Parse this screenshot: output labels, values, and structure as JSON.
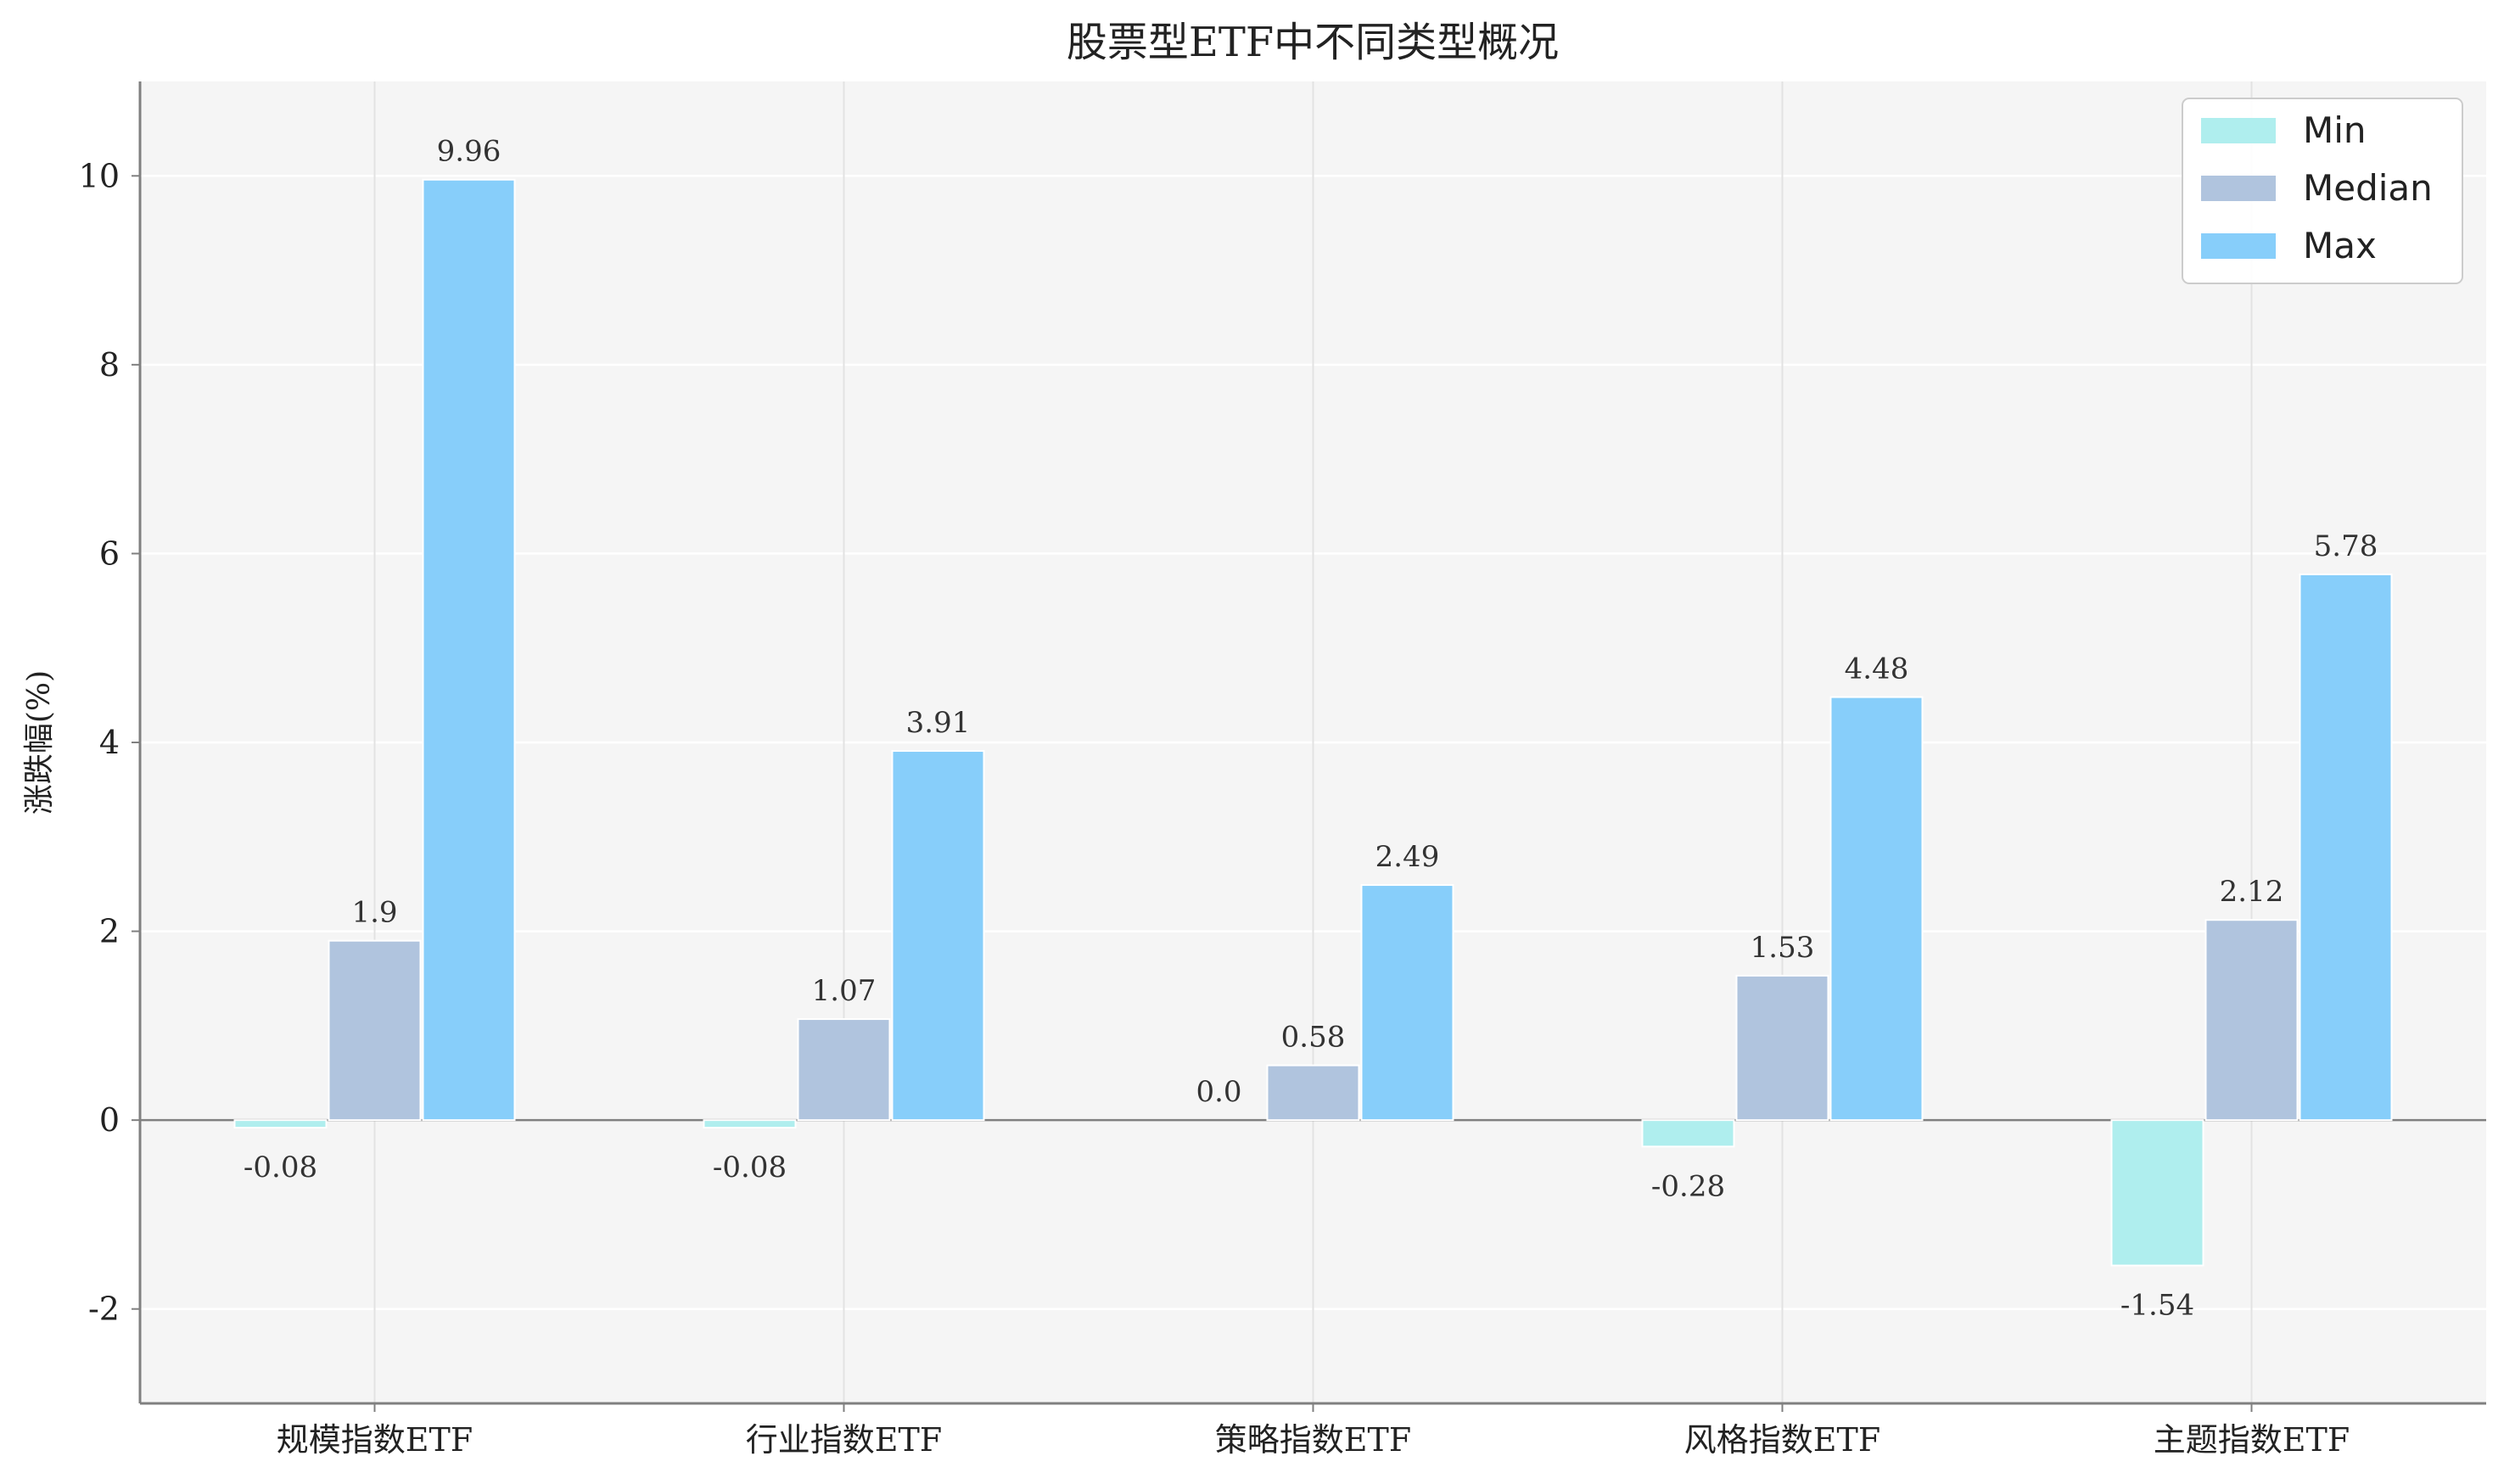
{
  "chart_data": {
    "type": "bar",
    "title": "股票型ETF中不同类型概况",
    "xlabel": "",
    "ylabel": "涨跌幅(%)",
    "ylim": [
      -3,
      11
    ],
    "yticks": [
      -2,
      0,
      2,
      4,
      6,
      8,
      10
    ],
    "ytick_labels": [
      "-2",
      "0",
      "2",
      "4",
      "6",
      "8",
      "10"
    ],
    "grid": true,
    "legend_position": "top-right",
    "categories": [
      "规模指数ETF",
      "行业指数ETF",
      "策略指数ETF",
      "风格指数ETF",
      "主题指数ETF"
    ],
    "series": [
      {
        "name": "Min",
        "color": "#AFEEEE",
        "values": [
          -0.08,
          -0.08,
          0.0,
          -0.28,
          -1.54
        ],
        "labels": [
          "-0.08",
          "-0.08",
          "0.0",
          "-0.28",
          "-1.54"
        ]
      },
      {
        "name": "Median",
        "color": "#B0C4DE",
        "values": [
          1.9,
          1.07,
          0.58,
          1.53,
          2.12
        ],
        "labels": [
          "1.9",
          "1.07",
          "0.58",
          "1.53",
          "2.12"
        ]
      },
      {
        "name": "Max",
        "color": "#87CEFA",
        "values": [
          9.96,
          3.91,
          2.49,
          4.48,
          5.78
        ],
        "labels": [
          "9.96",
          "3.91",
          "2.49",
          "4.48",
          "5.78"
        ]
      }
    ]
  }
}
